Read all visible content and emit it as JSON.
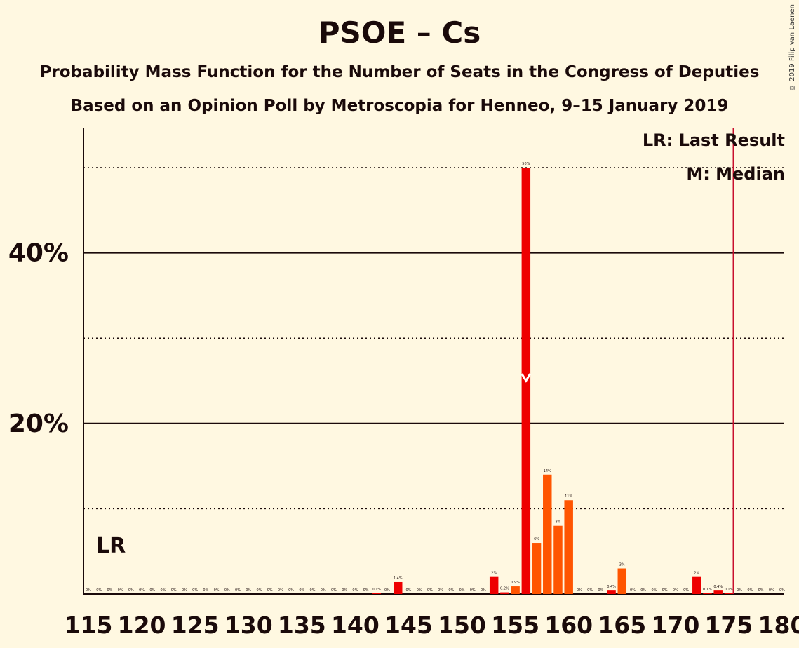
{
  "title": "PSOE – Cs",
  "subtitle1": "Probability Mass Function for the Number of Seats in the Congress of Deputies",
  "subtitle2": "Based on an Opinion Poll by Metroscopia for Henneo, 9–15 January 2019",
  "copyright": "© 2019 Filip van Laenen",
  "legend": {
    "last_result": "LR: Last Result",
    "median": "M: Median"
  },
  "lr_label": "LR",
  "colors": {
    "background": "#fff8e1",
    "bar_primary": "#ee0000",
    "bar_secondary": "#ff5500",
    "lr_line": "#c8102e",
    "axis": "#1a0a0a"
  },
  "chart_data": {
    "type": "bar",
    "xlabel": "",
    "ylabel": "",
    "xlim": [
      115,
      180
    ],
    "ylim": [
      0,
      54
    ],
    "x_ticks": [
      115,
      120,
      125,
      130,
      135,
      140,
      145,
      150,
      155,
      160,
      165,
      170,
      175,
      180
    ],
    "y_ticks": [
      {
        "value": 20,
        "label": "20%"
      },
      {
        "value": 40,
        "label": "40%"
      }
    ],
    "dotted_gridlines": [
      10,
      30,
      50
    ],
    "last_result": 176,
    "median": 156,
    "bars": [
      {
        "x": 115,
        "value": 0,
        "label": "0%"
      },
      {
        "x": 116,
        "value": 0,
        "label": "0%"
      },
      {
        "x": 117,
        "value": 0,
        "label": "0%"
      },
      {
        "x": 118,
        "value": 0,
        "label": "0%"
      },
      {
        "x": 119,
        "value": 0,
        "label": "0%"
      },
      {
        "x": 120,
        "value": 0,
        "label": "0%"
      },
      {
        "x": 121,
        "value": 0,
        "label": "0%"
      },
      {
        "x": 122,
        "value": 0,
        "label": "0%"
      },
      {
        "x": 123,
        "value": 0,
        "label": "0%"
      },
      {
        "x": 124,
        "value": 0,
        "label": "0%"
      },
      {
        "x": 125,
        "value": 0,
        "label": "0%"
      },
      {
        "x": 126,
        "value": 0,
        "label": "0%"
      },
      {
        "x": 127,
        "value": 0,
        "label": "0%"
      },
      {
        "x": 128,
        "value": 0,
        "label": "0%"
      },
      {
        "x": 129,
        "value": 0,
        "label": "0%"
      },
      {
        "x": 130,
        "value": 0,
        "label": "0%"
      },
      {
        "x": 131,
        "value": 0,
        "label": "0%"
      },
      {
        "x": 132,
        "value": 0,
        "label": "0%"
      },
      {
        "x": 133,
        "value": 0,
        "label": "0%"
      },
      {
        "x": 134,
        "value": 0,
        "label": "0%"
      },
      {
        "x": 135,
        "value": 0,
        "label": "0%"
      },
      {
        "x": 136,
        "value": 0,
        "label": "0%"
      },
      {
        "x": 137,
        "value": 0,
        "label": "0%"
      },
      {
        "x": 138,
        "value": 0,
        "label": "0%"
      },
      {
        "x": 139,
        "value": 0,
        "label": "0%"
      },
      {
        "x": 140,
        "value": 0,
        "label": "0%"
      },
      {
        "x": 141,
        "value": 0,
        "label": "0%"
      },
      {
        "x": 142,
        "value": 0.1,
        "label": "0.1%"
      },
      {
        "x": 143,
        "value": 0,
        "label": "0%"
      },
      {
        "x": 144,
        "value": 1.4,
        "label": "1.4%"
      },
      {
        "x": 145,
        "value": 0,
        "label": "0%"
      },
      {
        "x": 146,
        "value": 0,
        "label": "0%"
      },
      {
        "x": 147,
        "value": 0,
        "label": "0%"
      },
      {
        "x": 148,
        "value": 0,
        "label": "0%"
      },
      {
        "x": 149,
        "value": 0,
        "label": "0%"
      },
      {
        "x": 150,
        "value": 0,
        "label": "0%"
      },
      {
        "x": 151,
        "value": 0,
        "label": "0%"
      },
      {
        "x": 152,
        "value": 0,
        "label": "0%"
      },
      {
        "x": 153,
        "value": 2,
        "label": "2%"
      },
      {
        "x": 154,
        "value": 0.2,
        "label": "0.2%"
      },
      {
        "x": 155,
        "value": 0.9,
        "label": "0.9%"
      },
      {
        "x": 156,
        "value": 50,
        "label": "50%"
      },
      {
        "x": 157,
        "value": 6,
        "label": "6%"
      },
      {
        "x": 158,
        "value": 14,
        "label": "14%"
      },
      {
        "x": 159,
        "value": 8,
        "label": "8%"
      },
      {
        "x": 160,
        "value": 11,
        "label": "11%"
      },
      {
        "x": 161,
        "value": 0,
        "label": "0%"
      },
      {
        "x": 162,
        "value": 0,
        "label": "0%"
      },
      {
        "x": 163,
        "value": 0,
        "label": "0%"
      },
      {
        "x": 164,
        "value": 0.4,
        "label": "0.4%"
      },
      {
        "x": 165,
        "value": 3,
        "label": "3%"
      },
      {
        "x": 166,
        "value": 0,
        "label": "0%"
      },
      {
        "x": 167,
        "value": 0,
        "label": "0%"
      },
      {
        "x": 168,
        "value": 0,
        "label": "0%"
      },
      {
        "x": 169,
        "value": 0,
        "label": "0%"
      },
      {
        "x": 170,
        "value": 0,
        "label": "0%"
      },
      {
        "x": 171,
        "value": 0,
        "label": "0%"
      },
      {
        "x": 172,
        "value": 2,
        "label": "2%"
      },
      {
        "x": 173,
        "value": 0.1,
        "label": "0.1%"
      },
      {
        "x": 174,
        "value": 0.4,
        "label": "0.4%"
      },
      {
        "x": 175,
        "value": 0.1,
        "label": "0.1%"
      },
      {
        "x": 176,
        "value": 0,
        "label": "0%"
      },
      {
        "x": 177,
        "value": 0,
        "label": "0%"
      },
      {
        "x": 178,
        "value": 0,
        "label": "0%"
      },
      {
        "x": 179,
        "value": 0,
        "label": "0%"
      },
      {
        "x": 180,
        "value": 0,
        "label": "0%"
      }
    ]
  }
}
